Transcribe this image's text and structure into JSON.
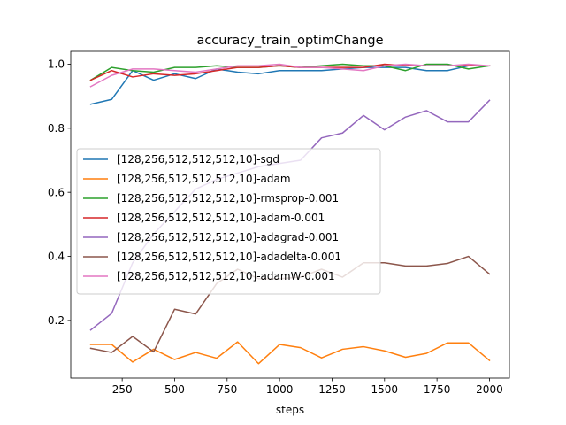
{
  "chart_data": {
    "type": "line",
    "title": "accuracy_train_optimChange",
    "xlabel": "steps",
    "ylabel": "",
    "xlim": [
      5,
      2095
    ],
    "ylim": [
      0.02,
      1.04
    ],
    "xticks": [
      250,
      500,
      750,
      1000,
      1250,
      1500,
      1750,
      2000
    ],
    "xtick_labels": [
      "250",
      "500",
      "750",
      "1000",
      "1250",
      "1500",
      "1750",
      "2000"
    ],
    "yticks": [
      0.2,
      0.4,
      0.6,
      0.8,
      1.0
    ],
    "ytick_labels": [
      "0.2",
      "0.4",
      "0.6",
      "0.8",
      "1.0"
    ],
    "legend_position": "center-left",
    "grid": false,
    "x": [
      100,
      200,
      300,
      400,
      500,
      600,
      700,
      800,
      900,
      1000,
      1100,
      1200,
      1300,
      1400,
      1500,
      1600,
      1700,
      1800,
      1900,
      2000
    ],
    "series": [
      {
        "name": "[128,256,512,512,512,10]-sgd",
        "color": "#1f77b4",
        "values": [
          0.875,
          0.89,
          0.98,
          0.95,
          0.97,
          0.955,
          0.985,
          0.975,
          0.97,
          0.98,
          0.98,
          0.98,
          0.985,
          0.99,
          0.99,
          0.99,
          0.98,
          0.98,
          0.995,
          0.995
        ]
      },
      {
        "name": "[128,256,512,512,512,10]-adam",
        "color": "#ff7f0e",
        "values": [
          0.125,
          0.125,
          0.07,
          0.11,
          0.078,
          0.1,
          0.082,
          0.133,
          0.065,
          0.125,
          0.115,
          0.083,
          0.11,
          0.118,
          0.105,
          0.085,
          0.097,
          0.13,
          0.13,
          0.075
        ]
      },
      {
        "name": "[128,256,512,512,512,10]-rmsprop-0.001",
        "color": "#2ca02c",
        "values": [
          0.95,
          0.99,
          0.98,
          0.975,
          0.99,
          0.99,
          0.995,
          0.99,
          0.99,
          0.995,
          0.99,
          0.995,
          1.0,
          0.995,
          0.995,
          0.98,
          1.0,
          1.0,
          0.985,
          0.995
        ]
      },
      {
        "name": "[128,256,512,512,512,10]-adam-0.001",
        "color": "#d62728",
        "values": [
          0.95,
          0.98,
          0.96,
          0.97,
          0.965,
          0.97,
          0.98,
          0.99,
          0.99,
          0.995,
          0.99,
          0.99,
          0.99,
          0.99,
          1.0,
          0.995,
          0.995,
          0.995,
          0.995,
          0.995
        ]
      },
      {
        "name": "[128,256,512,512,512,10]-adagrad-0.001",
        "color": "#9467bd",
        "values": [
          0.17,
          0.222,
          0.38,
          0.47,
          0.54,
          0.61,
          0.64,
          0.66,
          0.68,
          0.69,
          0.7,
          0.77,
          0.785,
          0.84,
          0.795,
          0.835,
          0.855,
          0.82,
          0.82,
          0.887
        ]
      },
      {
        "name": "[128,256,512,512,512,10]-adadelta-0.001",
        "color": "#8c564b",
        "values": [
          0.113,
          0.1,
          0.15,
          0.102,
          0.235,
          0.22,
          0.315,
          0.36,
          0.33,
          0.33,
          0.335,
          0.36,
          0.335,
          0.38,
          0.38,
          0.37,
          0.37,
          0.378,
          0.4,
          0.345
        ]
      },
      {
        "name": "[128,256,512,512,512,10]-adamW-0.001",
        "color": "#e377c2",
        "values": [
          0.93,
          0.965,
          0.985,
          0.985,
          0.98,
          0.975,
          0.985,
          0.995,
          0.995,
          1.0,
          0.99,
          0.99,
          0.985,
          0.98,
          0.995,
          1.0,
          0.995,
          0.995,
          1.0,
          0.995
        ]
      }
    ]
  }
}
